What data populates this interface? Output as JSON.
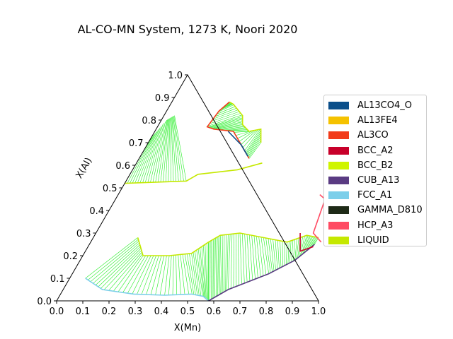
{
  "chart_data": {
    "type": "ternary-phase-diagram",
    "title": "AL-CO-MN System, 1273 K, Noori 2020",
    "xlabel": "X(Mn)",
    "ylabel": "X(Al)",
    "x_ticks": [
      "0.0",
      "0.1",
      "0.2",
      "0.3",
      "0.4",
      "0.5",
      "0.6",
      "0.7",
      "0.8",
      "0.9",
      "1.0"
    ],
    "y_ticks": [
      "0.0",
      "0.1",
      "0.2",
      "0.3",
      "0.4",
      "0.5",
      "0.6",
      "0.7",
      "0.8",
      "0.9",
      "1.0"
    ],
    "legend_placement": "right",
    "phases": [
      {
        "name": "AL13CO4_O",
        "color": "#0b4f8a"
      },
      {
        "name": "AL13FE4",
        "color": "#f5c200"
      },
      {
        "name": "AL3CO",
        "color": "#f23b1a"
      },
      {
        "name": "BCC_A2",
        "color": "#c8002a"
      },
      {
        "name": "BCC_B2",
        "color": "#cff500"
      },
      {
        "name": "CUB_A13",
        "color": "#5a3b82"
      },
      {
        "name": "FCC_A1",
        "color": "#7dcfea"
      },
      {
        "name": "GAMMA_D810",
        "color": "#1e2a17"
      },
      {
        "name": "HCP_A3",
        "color": "#ff4b63"
      },
      {
        "name": "LIQUID",
        "color": "#c5e800"
      }
    ],
    "boundaries": [
      {
        "phase": "FCC_A1",
        "points": [
          [
            0.06,
            0.1
          ],
          [
            0.15,
            0.05
          ],
          [
            0.28,
            0.03
          ],
          [
            0.4,
            0.025
          ],
          [
            0.5,
            0.03
          ],
          [
            0.55,
            0.02
          ],
          [
            0.58,
            0.0
          ]
        ]
      },
      {
        "phase": "LIQUID",
        "points": [
          [
            0.17,
            0.28
          ],
          [
            0.23,
            0.2
          ],
          [
            0.33,
            0.2
          ],
          [
            0.41,
            0.21
          ],
          [
            0.45,
            0.26
          ],
          [
            0.48,
            0.29
          ],
          [
            0.55,
            0.3
          ],
          [
            0.65,
            0.28
          ],
          [
            0.75,
            0.26
          ],
          [
            0.81,
            0.29
          ],
          [
            0.86,
            0.28
          ]
        ]
      },
      {
        "phase": "CUB_A13",
        "points": [
          [
            0.58,
            0.0
          ],
          [
            0.63,
            0.05
          ],
          [
            0.75,
            0.12
          ],
          [
            0.82,
            0.18
          ],
          [
            0.86,
            0.25
          ]
        ]
      },
      {
        "phase": "BCC_A2",
        "points": [
          [
            0.78,
            0.3
          ],
          [
            0.82,
            0.22
          ],
          [
            0.86,
            0.24
          ]
        ]
      },
      {
        "phase": "HCP_A3",
        "points": [
          [
            0.77,
            0.47
          ],
          [
            0.8,
            0.45
          ],
          [
            0.83,
            0.3
          ],
          [
            0.88,
            0.26
          ]
        ]
      },
      {
        "phase": "LIQUID",
        "points": [
          [
            0.0,
            0.52
          ],
          [
            0.23,
            0.53
          ],
          [
            0.26,
            0.56
          ],
          [
            0.4,
            0.58
          ],
          [
            0.48,
            0.61
          ]
        ]
      },
      {
        "phase": "LIQUID",
        "points": [
          [
            0.22,
            0.88
          ],
          [
            0.24,
            0.87
          ],
          [
            0.3,
            0.82
          ],
          [
            0.32,
            0.78
          ],
          [
            0.36,
            0.75
          ],
          [
            0.4,
            0.76
          ],
          [
            0.43,
            0.7
          ]
        ]
      },
      {
        "phase": "AL3CO",
        "points": [
          [
            0.22,
            0.88
          ],
          [
            0.2,
            0.84
          ],
          [
            0.19,
            0.77
          ],
          [
            0.22,
            0.76
          ],
          [
            0.3,
            0.75
          ],
          [
            0.39,
            0.66
          ],
          [
            0.42,
            0.63
          ]
        ]
      },
      {
        "phase": "AL13CO4_O",
        "points": [
          [
            0.28,
            0.75
          ],
          [
            0.36,
            0.69
          ],
          [
            0.41,
            0.64
          ]
        ]
      }
    ]
  }
}
